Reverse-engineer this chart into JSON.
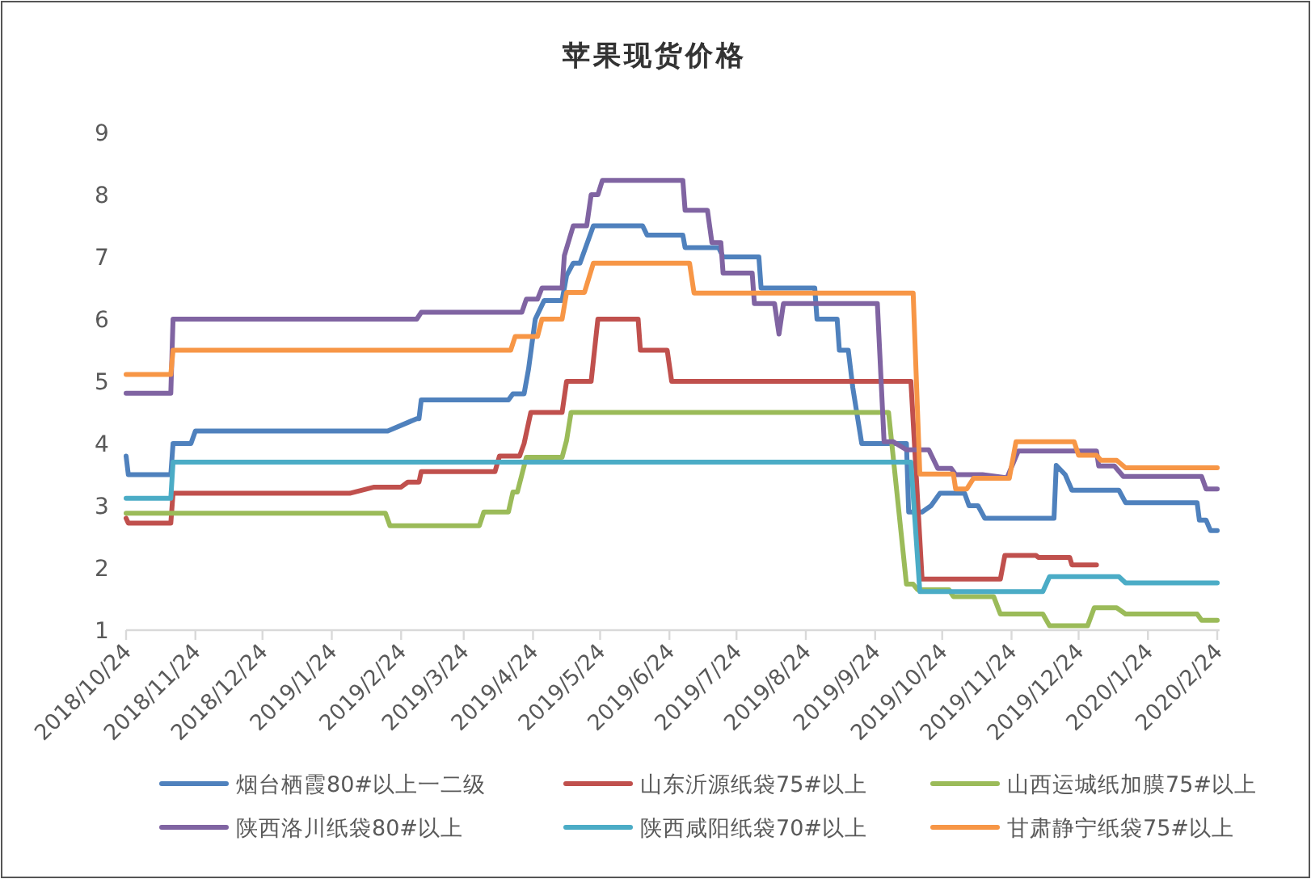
{
  "chart_data": {
    "type": "line",
    "title": "苹果现货价格",
    "xlim": [
      "2018-10-24",
      "2020-02-25"
    ],
    "ylim": [
      1,
      9
    ],
    "yticks": [
      1,
      2,
      3,
      4,
      5,
      6,
      7,
      8,
      9
    ],
    "xticks": [
      {
        "value": "2018-10-24",
        "label": "2018/10/24"
      },
      {
        "value": "2018-11-24",
        "label": "2018/11/24"
      },
      {
        "value": "2018-12-24",
        "label": "2018/12/24"
      },
      {
        "value": "2019-01-24",
        "label": "2019/1/24"
      },
      {
        "value": "2019-02-24",
        "label": "2019/2/24"
      },
      {
        "value": "2019-03-24",
        "label": "2019/3/24"
      },
      {
        "value": "2019-04-24",
        "label": "2019/4/24"
      },
      {
        "value": "2019-05-24",
        "label": "2019/5/24"
      },
      {
        "value": "2019-06-24",
        "label": "2019/6/24"
      },
      {
        "value": "2019-07-24",
        "label": "2019/7/24"
      },
      {
        "value": "2019-08-24",
        "label": "2019/8/24"
      },
      {
        "value": "2019-09-24",
        "label": "2019/9/24"
      },
      {
        "value": "2019-10-24",
        "label": "2019/10/24"
      },
      {
        "value": "2019-11-24",
        "label": "2019/11/24"
      },
      {
        "value": "2019-12-24",
        "label": "2019/12/24"
      },
      {
        "value": "2020-01-24",
        "label": "2020/1/24"
      },
      {
        "value": "2020-02-24",
        "label": "2020/2/24"
      }
    ],
    "legend": "bottom",
    "line_style": "solid",
    "series": [
      {
        "name": "烟台栖霞80#以上一二级",
        "color": "#4f81bd",
        "x": [
          "2018-10-24",
          "2018-10-25",
          "2018-11-13",
          "2018-11-14",
          "2018-11-22",
          "2018-11-24",
          "2019-02-18",
          "2019-03-03",
          "2019-03-04",
          "2019-03-05",
          "2019-04-13",
          "2019-04-15",
          "2019-04-20",
          "2019-04-22",
          "2019-04-25",
          "2019-04-29",
          "2019-05-07",
          "2019-05-09",
          "2019-05-12",
          "2019-05-15",
          "2019-05-21",
          "2019-06-12",
          "2019-06-14",
          "2019-06-30",
          "2019-07-01",
          "2019-07-16",
          "2019-07-18",
          "2019-08-03",
          "2019-08-04",
          "2019-08-28",
          "2019-08-29",
          "2019-09-07",
          "2019-09-08",
          "2019-09-12",
          "2019-09-14",
          "2019-09-18",
          "2019-10-08",
          "2019-10-09",
          "2019-10-15",
          "2019-10-19",
          "2019-10-23",
          "2019-11-03",
          "2019-11-05",
          "2019-11-09",
          "2019-11-12",
          "2019-12-13",
          "2019-12-14",
          "2019-12-18",
          "2019-12-21",
          "2020-01-11",
          "2020-01-14",
          "2020-02-15",
          "2020-02-16",
          "2020-02-19",
          "2020-02-21",
          "2020-02-24"
        ],
        "values": [
          3.8,
          3.5,
          3.5,
          4.0,
          4.0,
          4.2,
          4.2,
          4.4,
          4.4,
          4.7,
          4.7,
          4.8,
          4.8,
          5.2,
          6.0,
          6.3,
          6.3,
          6.7,
          6.9,
          6.9,
          7.5,
          7.5,
          7.35,
          7.35,
          7.15,
          7.15,
          7.0,
          7.0,
          6.5,
          6.5,
          6.0,
          6.0,
          5.5,
          5.5,
          4.9,
          4.0,
          4.0,
          2.9,
          2.9,
          3.0,
          3.2,
          3.2,
          3.0,
          3.0,
          2.8,
          2.8,
          3.65,
          3.5,
          3.25,
          3.25,
          3.05,
          3.05,
          2.77,
          2.77,
          2.6,
          2.6
        ]
      },
      {
        "name": "山东沂源纸袋75#以上",
        "color": "#c0504d",
        "x": [
          "2018-10-24",
          "2018-10-25",
          "2018-11-13",
          "2018-11-14",
          "2019-02-01",
          "2019-02-12",
          "2019-02-24",
          "2019-02-27",
          "2019-03-04",
          "2019-03-05",
          "2019-04-07",
          "2019-04-09",
          "2019-04-18",
          "2019-04-20",
          "2019-04-23",
          "2019-05-07",
          "2019-05-09",
          "2019-05-20",
          "2019-05-23",
          "2019-06-10",
          "2019-06-11",
          "2019-06-23",
          "2019-06-25",
          "2019-10-10",
          "2019-10-15",
          "2019-11-19",
          "2019-11-21",
          "2019-12-05",
          "2019-12-06",
          "2019-12-20",
          "2019-12-21",
          "2020-01-01"
        ],
        "values": [
          2.8,
          2.72,
          2.72,
          3.2,
          3.2,
          3.3,
          3.3,
          3.38,
          3.38,
          3.55,
          3.55,
          3.8,
          3.8,
          4.0,
          4.5,
          4.5,
          5.0,
          5.0,
          6.0,
          6.0,
          5.5,
          5.5,
          5.0,
          5.0,
          1.82,
          1.82,
          2.2,
          2.2,
          2.17,
          2.17,
          2.05,
          2.05
        ]
      },
      {
        "name": "山西运城纸加膜75#以上",
        "color": "#9bbb59",
        "x": [
          "2018-10-24",
          "2019-02-17",
          "2019-02-19",
          "2019-03-31",
          "2019-04-02",
          "2019-04-13",
          "2019-04-15",
          "2019-04-17",
          "2019-04-19",
          "2019-04-21",
          "2019-05-07",
          "2019-05-09",
          "2019-05-11",
          "2019-09-30",
          "2019-10-08",
          "2019-10-11",
          "2019-10-13",
          "2019-10-27",
          "2019-10-29",
          "2019-11-16",
          "2019-11-19",
          "2019-12-08",
          "2019-12-11",
          "2019-12-28",
          "2019-12-31",
          "2020-01-10",
          "2020-01-14",
          "2020-02-15",
          "2020-02-17",
          "2020-02-24"
        ],
        "values": [
          2.88,
          2.88,
          2.68,
          2.68,
          2.9,
          2.9,
          3.22,
          3.22,
          3.5,
          3.78,
          3.78,
          4.05,
          4.5,
          4.5,
          1.74,
          1.74,
          1.65,
          1.65,
          1.54,
          1.54,
          1.26,
          1.26,
          1.07,
          1.07,
          1.36,
          1.36,
          1.26,
          1.26,
          1.16,
          1.16
        ]
      },
      {
        "name": "陕西洛川纸袋80#以上",
        "color": "#8064a2",
        "x": [
          "2018-10-24",
          "2018-11-13",
          "2018-11-14",
          "2019-03-03",
          "2019-03-05",
          "2019-04-19",
          "2019-04-21",
          "2019-04-26",
          "2019-04-28",
          "2019-05-07",
          "2019-05-08",
          "2019-05-12",
          "2019-05-18",
          "2019-05-20",
          "2019-05-23",
          "2019-05-25",
          "2019-06-30",
          "2019-07-01",
          "2019-07-11",
          "2019-07-13",
          "2019-07-17",
          "2019-07-18",
          "2019-07-31",
          "2019-08-01",
          "2019-08-10",
          "2019-08-12",
          "2019-08-14",
          "2019-09-25",
          "2019-09-28",
          "2019-10-02",
          "2019-10-08",
          "2019-10-18",
          "2019-10-22",
          "2019-10-28",
          "2019-10-30",
          "2019-11-11",
          "2019-11-22",
          "2019-11-27",
          "2020-01-01",
          "2020-01-02",
          "2020-01-09",
          "2020-01-13",
          "2020-02-17",
          "2020-02-19",
          "2020-02-24"
        ],
        "values": [
          4.81,
          4.81,
          6.0,
          6.0,
          6.11,
          6.11,
          6.32,
          6.32,
          6.5,
          6.5,
          7.02,
          7.5,
          7.5,
          8.0,
          8.0,
          8.23,
          8.23,
          7.75,
          7.75,
          7.23,
          7.23,
          6.74,
          6.74,
          6.25,
          6.25,
          5.76,
          6.25,
          6.25,
          4.03,
          4.03,
          3.9,
          3.9,
          3.6,
          3.6,
          3.5,
          3.5,
          3.45,
          3.88,
          3.88,
          3.64,
          3.64,
          3.47,
          3.47,
          3.27,
          3.27
        ]
      },
      {
        "name": "陕西咸阳纸袋70#以上",
        "color": "#4bacc6",
        "x": [
          "2018-10-24",
          "2018-11-13",
          "2018-11-14",
          "2019-10-10",
          "2019-10-14",
          "2019-12-08",
          "2019-12-11",
          "2020-01-11",
          "2020-01-14",
          "2020-02-24"
        ],
        "values": [
          3.12,
          3.12,
          3.7,
          3.7,
          1.62,
          1.62,
          1.86,
          1.86,
          1.76,
          1.76
        ]
      },
      {
        "name": "甘肃静宁纸袋75#以上",
        "color": "#f79646",
        "x": [
          "2018-10-24",
          "2018-11-13",
          "2018-11-14",
          "2019-04-14",
          "2019-04-16",
          "2019-04-26",
          "2019-04-28",
          "2019-05-07",
          "2019-05-09",
          "2019-05-17",
          "2019-05-21",
          "2019-07-03",
          "2019-07-05",
          "2019-10-11",
          "2019-10-14",
          "2019-10-29",
          "2019-10-30",
          "2019-11-04",
          "2019-11-07",
          "2019-11-23",
          "2019-11-26",
          "2019-12-22",
          "2019-12-24",
          "2020-01-01",
          "2020-01-03",
          "2020-01-10",
          "2020-01-14",
          "2020-02-24"
        ],
        "values": [
          5.11,
          5.11,
          5.5,
          5.5,
          5.72,
          5.72,
          6.0,
          6.0,
          6.43,
          6.43,
          6.9,
          6.9,
          6.42,
          6.42,
          3.51,
          3.51,
          3.27,
          3.27,
          3.44,
          3.44,
          4.03,
          4.03,
          3.81,
          3.81,
          3.73,
          3.73,
          3.61,
          3.61
        ]
      }
    ]
  }
}
